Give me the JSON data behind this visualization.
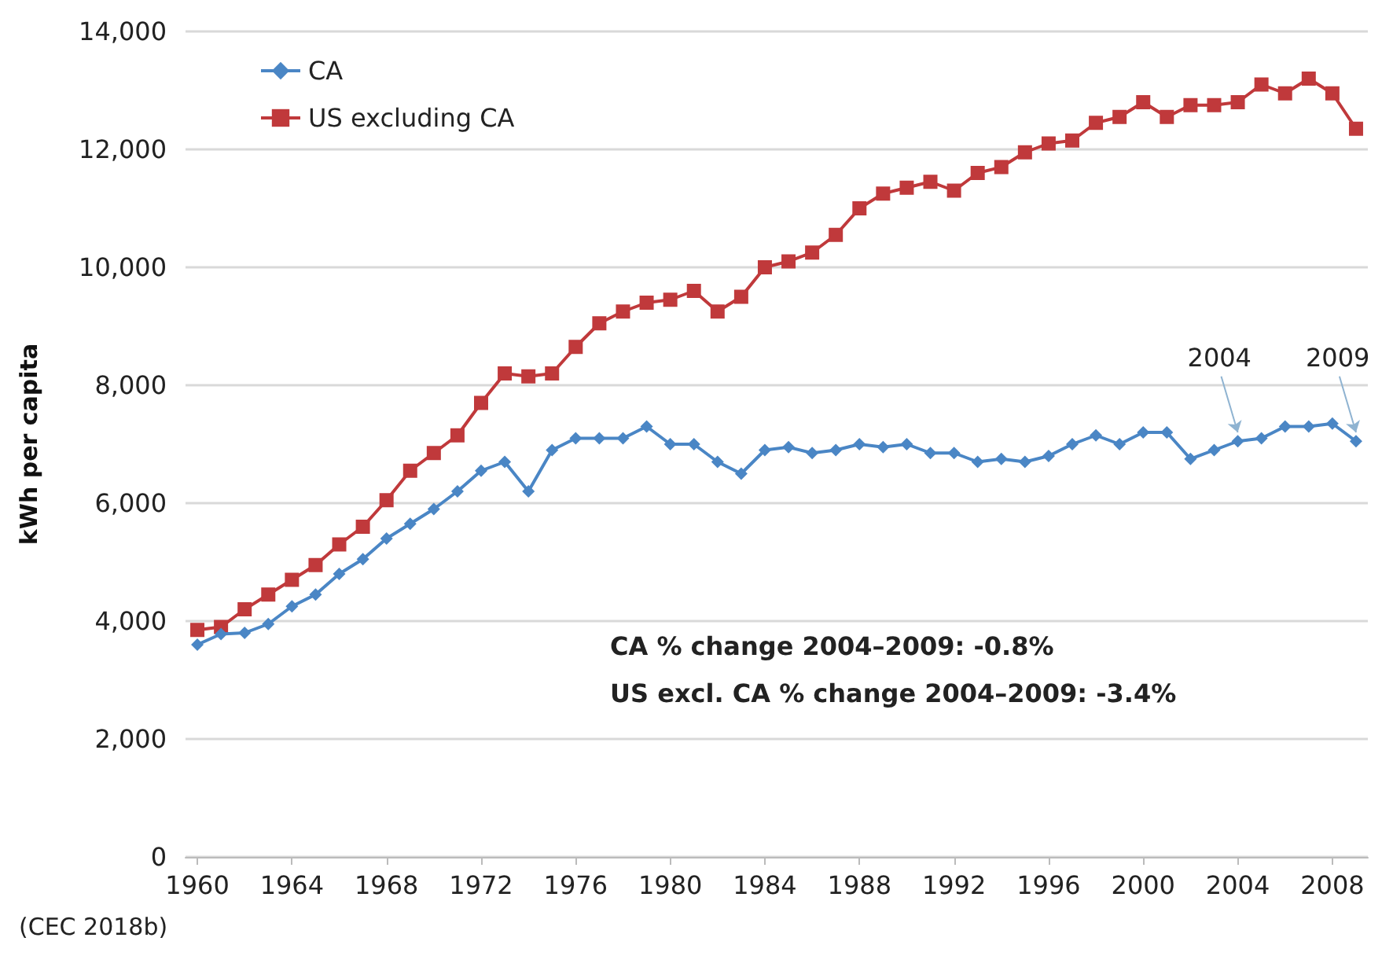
{
  "chart_data": {
    "type": "line",
    "ylabel": "kWh per capita",
    "x": [
      1960,
      1961,
      1962,
      1963,
      1964,
      1965,
      1966,
      1967,
      1968,
      1969,
      1970,
      1971,
      1972,
      1973,
      1974,
      1975,
      1976,
      1977,
      1978,
      1979,
      1980,
      1981,
      1982,
      1983,
      1984,
      1985,
      1986,
      1987,
      1988,
      1989,
      1990,
      1991,
      1992,
      1993,
      1994,
      1995,
      1996,
      1997,
      1998,
      1999,
      2000,
      2001,
      2002,
      2003,
      2004,
      2005,
      2006,
      2007,
      2008,
      2009
    ],
    "series": [
      {
        "name": "CA",
        "color": "#4a86c5",
        "marker": "diamond",
        "values": [
          3600,
          3780,
          3800,
          3950,
          4250,
          4450,
          4800,
          5050,
          5400,
          5650,
          5900,
          6200,
          6550,
          6700,
          6200,
          6900,
          7100,
          7100,
          7100,
          7300,
          7000,
          7000,
          6700,
          6500,
          6900,
          6950,
          6850,
          6900,
          7000,
          6950,
          7000,
          6850,
          6850,
          6700,
          6750,
          6700,
          6800,
          7000,
          7150,
          7000,
          7200,
          7200,
          6750,
          6900,
          7050,
          7100,
          7300,
          7300,
          7350,
          7050
        ]
      },
      {
        "name": "US excluding CA",
        "color": "#c0393b",
        "marker": "square",
        "values": [
          3850,
          3900,
          4200,
          4450,
          4700,
          4950,
          5300,
          5600,
          6050,
          6550,
          6850,
          7150,
          7700,
          8200,
          8150,
          8200,
          8650,
          9050,
          9250,
          9400,
          9450,
          9600,
          9250,
          9500,
          10000,
          10100,
          10250,
          10550,
          11000,
          11250,
          11350,
          11450,
          11300,
          11600,
          11700,
          11950,
          12100,
          12150,
          12450,
          12550,
          12800,
          12550,
          12750,
          12750,
          12800,
          13100,
          12950,
          13200,
          12950,
          12350
        ]
      }
    ],
    "xlim": [
      1959.5,
      2009.5
    ],
    "xticks": [
      1960,
      1964,
      1968,
      1972,
      1976,
      1980,
      1984,
      1988,
      1992,
      1996,
      2000,
      2004,
      2008
    ],
    "ylim": [
      0,
      14000
    ],
    "yticks": [
      {
        "value": 0,
        "label": "0"
      },
      {
        "value": 2000,
        "label": "2,000"
      },
      {
        "value": 4000,
        "label": "4,000"
      },
      {
        "value": 6000,
        "label": "6,000"
      },
      {
        "value": 8000,
        "label": "8,000"
      },
      {
        "value": 10000,
        "label": "10,000"
      },
      {
        "value": 12000,
        "label": "12,000"
      },
      {
        "value": 14000,
        "label": "14,000"
      }
    ],
    "grid": "y",
    "legend": "top left",
    "line_style": "solid",
    "annotations": [
      {
        "text": "2004",
        "x": 2004,
        "y": 7050
      },
      {
        "text": "2009",
        "x": 2009,
        "y": 7050
      },
      "CA % change 2004–2009: -0.8%",
      "US excl. CA % change 2004–2009: -3.4%",
      "(CEC 2018b)"
    ]
  }
}
